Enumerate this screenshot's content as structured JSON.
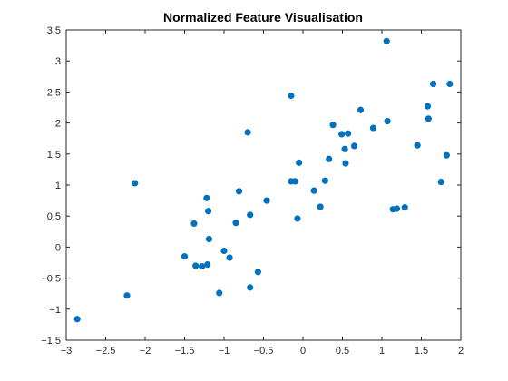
{
  "chart_data": {
    "type": "scatter",
    "title": "Normalized Feature Visualisation",
    "xlabel": "",
    "ylabel": "",
    "xlim": [
      -3,
      2
    ],
    "ylim": [
      -1.5,
      3.5
    ],
    "xticks": [
      -3,
      -2.5,
      -2,
      -1.5,
      -1,
      -0.5,
      0,
      0.5,
      1,
      1.5,
      2
    ],
    "yticks": [
      -1.5,
      -1,
      -0.5,
      0,
      0.5,
      1,
      1.5,
      2,
      2.5,
      3,
      3.5
    ],
    "grid": false,
    "marker_color": "#0072BD",
    "points": [
      [
        -2.86,
        -1.16
      ],
      [
        -2.23,
        -0.78
      ],
      [
        -2.13,
        1.03
      ],
      [
        -1.5,
        -0.15
      ],
      [
        -1.38,
        0.38
      ],
      [
        -1.36,
        -0.3
      ],
      [
        -1.28,
        -0.31
      ],
      [
        -1.22,
        0.79
      ],
      [
        -1.21,
        -0.28
      ],
      [
        -1.2,
        0.58
      ],
      [
        -1.19,
        0.13
      ],
      [
        -1.06,
        -0.74
      ],
      [
        -1.0,
        -0.06
      ],
      [
        -0.93,
        -0.17
      ],
      [
        -0.85,
        0.39
      ],
      [
        -0.81,
        0.9
      ],
      [
        -0.7,
        1.85
      ],
      [
        -0.67,
        0.52
      ],
      [
        -0.67,
        -0.65
      ],
      [
        -0.57,
        -0.4
      ],
      [
        -0.46,
        0.75
      ],
      [
        -0.15,
        2.44
      ],
      [
        -0.15,
        1.06
      ],
      [
        -0.1,
        1.06
      ],
      [
        -0.07,
        0.46
      ],
      [
        -0.05,
        1.36
      ],
      [
        0.14,
        0.91
      ],
      [
        0.22,
        0.65
      ],
      [
        0.28,
        1.07
      ],
      [
        0.33,
        1.42
      ],
      [
        0.38,
        1.97
      ],
      [
        0.49,
        1.82
      ],
      [
        0.53,
        1.58
      ],
      [
        0.54,
        1.35
      ],
      [
        0.57,
        1.83
      ],
      [
        0.65,
        1.63
      ],
      [
        0.73,
        2.21
      ],
      [
        0.89,
        1.92
      ],
      [
        1.06,
        3.32
      ],
      [
        1.07,
        2.03
      ],
      [
        1.14,
        0.61
      ],
      [
        1.19,
        0.62
      ],
      [
        1.29,
        0.64
      ],
      [
        1.45,
        1.64
      ],
      [
        1.58,
        2.27
      ],
      [
        1.59,
        2.07
      ],
      [
        1.65,
        2.63
      ],
      [
        1.75,
        1.05
      ],
      [
        1.82,
        1.48
      ],
      [
        1.86,
        2.63
      ]
    ]
  }
}
